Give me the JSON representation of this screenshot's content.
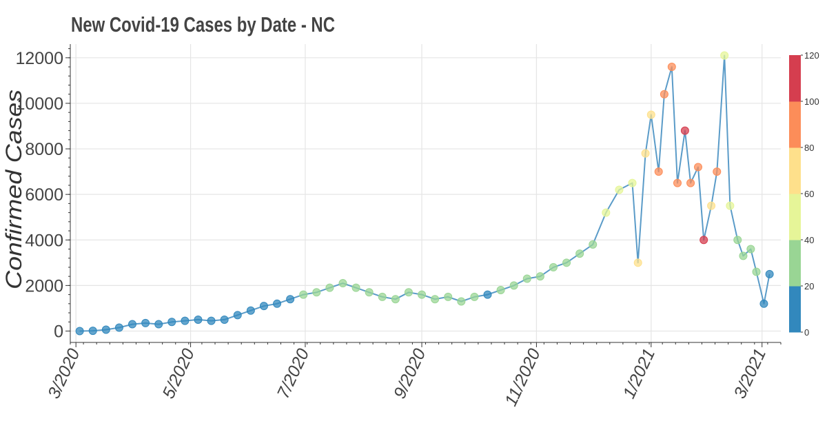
{
  "chart_data": {
    "type": "line",
    "title": "New Covid-19 Cases by Date - NC",
    "ylabel": "Confirmed Cases",
    "xlabel": "",
    "xlim": [
      "2020-02-27",
      "2021-03-11"
    ],
    "ylim": [
      -500,
      12600
    ],
    "yticks": [
      0,
      2000,
      4000,
      6000,
      8000,
      10000,
      12000
    ],
    "xticks": [
      {
        "label": "3/2020",
        "date": "2020-03-01"
      },
      {
        "label": "5/2020",
        "date": "2020-05-01"
      },
      {
        "label": "7/2020",
        "date": "2020-07-01"
      },
      {
        "label": "9/2020",
        "date": "2020-09-01"
      },
      {
        "label": "11/2020",
        "date": "2020-11-01"
      },
      {
        "label": "1/2021",
        "date": "2021-01-01"
      },
      {
        "label": "3/2021",
        "date": "2021-03-01"
      }
    ],
    "grid": true,
    "line_color": "#5a9bc8",
    "colorbar": {
      "ticks": [
        0,
        20,
        40,
        60,
        80,
        100,
        120
      ],
      "colors": [
        "#3288bd",
        "#99d594",
        "#e6f598",
        "#fee08b",
        "#fc8d59",
        "#d53e4f"
      ]
    },
    "series": [
      {
        "x": [
          "2020-03-03",
          "2020-03-10",
          "2020-03-17",
          "2020-03-24",
          "2020-03-31",
          "2020-04-07",
          "2020-04-14",
          "2020-04-21",
          "2020-04-28",
          "2020-05-05",
          "2020-05-12",
          "2020-05-19",
          "2020-05-26",
          "2020-06-02",
          "2020-06-09",
          "2020-06-16",
          "2020-06-23",
          "2020-06-30",
          "2020-07-07",
          "2020-07-14",
          "2020-07-21",
          "2020-07-28",
          "2020-08-04",
          "2020-08-11",
          "2020-08-18",
          "2020-08-25",
          "2020-09-01",
          "2020-09-08",
          "2020-09-15",
          "2020-09-22",
          "2020-09-29",
          "2020-10-06",
          "2020-10-13",
          "2020-10-20",
          "2020-10-27",
          "2020-11-03",
          "2020-11-10",
          "2020-11-17",
          "2020-11-24",
          "2020-12-01",
          "2020-12-08",
          "2020-12-15",
          "2020-12-22",
          "2020-12-25",
          "2020-12-29",
          "2021-01-01",
          "2021-01-05",
          "2021-01-08",
          "2021-01-12",
          "2021-01-15",
          "2021-01-19",
          "2021-01-22",
          "2021-01-26",
          "2021-01-29",
          "2021-02-02",
          "2021-02-05",
          "2021-02-09",
          "2021-02-12",
          "2021-02-16",
          "2021-02-19",
          "2021-02-23",
          "2021-02-26",
          "2021-03-02",
          "2021-03-05"
        ],
        "y": [
          0,
          10,
          60,
          150,
          300,
          350,
          300,
          400,
          450,
          500,
          450,
          500,
          700,
          900,
          1100,
          1200,
          1400,
          1600,
          1700,
          1900,
          2100,
          1900,
          1700,
          1500,
          1400,
          1700,
          1600,
          1400,
          1500,
          1300,
          1500,
          1600,
          1800,
          2000,
          2300,
          2400,
          2800,
          3000,
          3400,
          3800,
          5200,
          6200,
          6500,
          3000,
          7800,
          9500,
          7000,
          10400,
          11600,
          6500,
          8800,
          6500,
          7200,
          4000,
          5500,
          7000,
          12100,
          5500,
          4000,
          3300,
          3600,
          2600,
          1200,
          2500
        ],
        "color_value": [
          0,
          0,
          0,
          0,
          0,
          0,
          0,
          0,
          0,
          0,
          0,
          0,
          0,
          0,
          0,
          0,
          0,
          20,
          20,
          20,
          20,
          20,
          20,
          20,
          20,
          20,
          20,
          20,
          20,
          20,
          20,
          0,
          20,
          20,
          20,
          20,
          20,
          20,
          20,
          20,
          40,
          40,
          40,
          60,
          60,
          60,
          80,
          80,
          80,
          80,
          100,
          80,
          80,
          100,
          60,
          80,
          40,
          40,
          20,
          20,
          20,
          20,
          0,
          0
        ]
      }
    ]
  }
}
